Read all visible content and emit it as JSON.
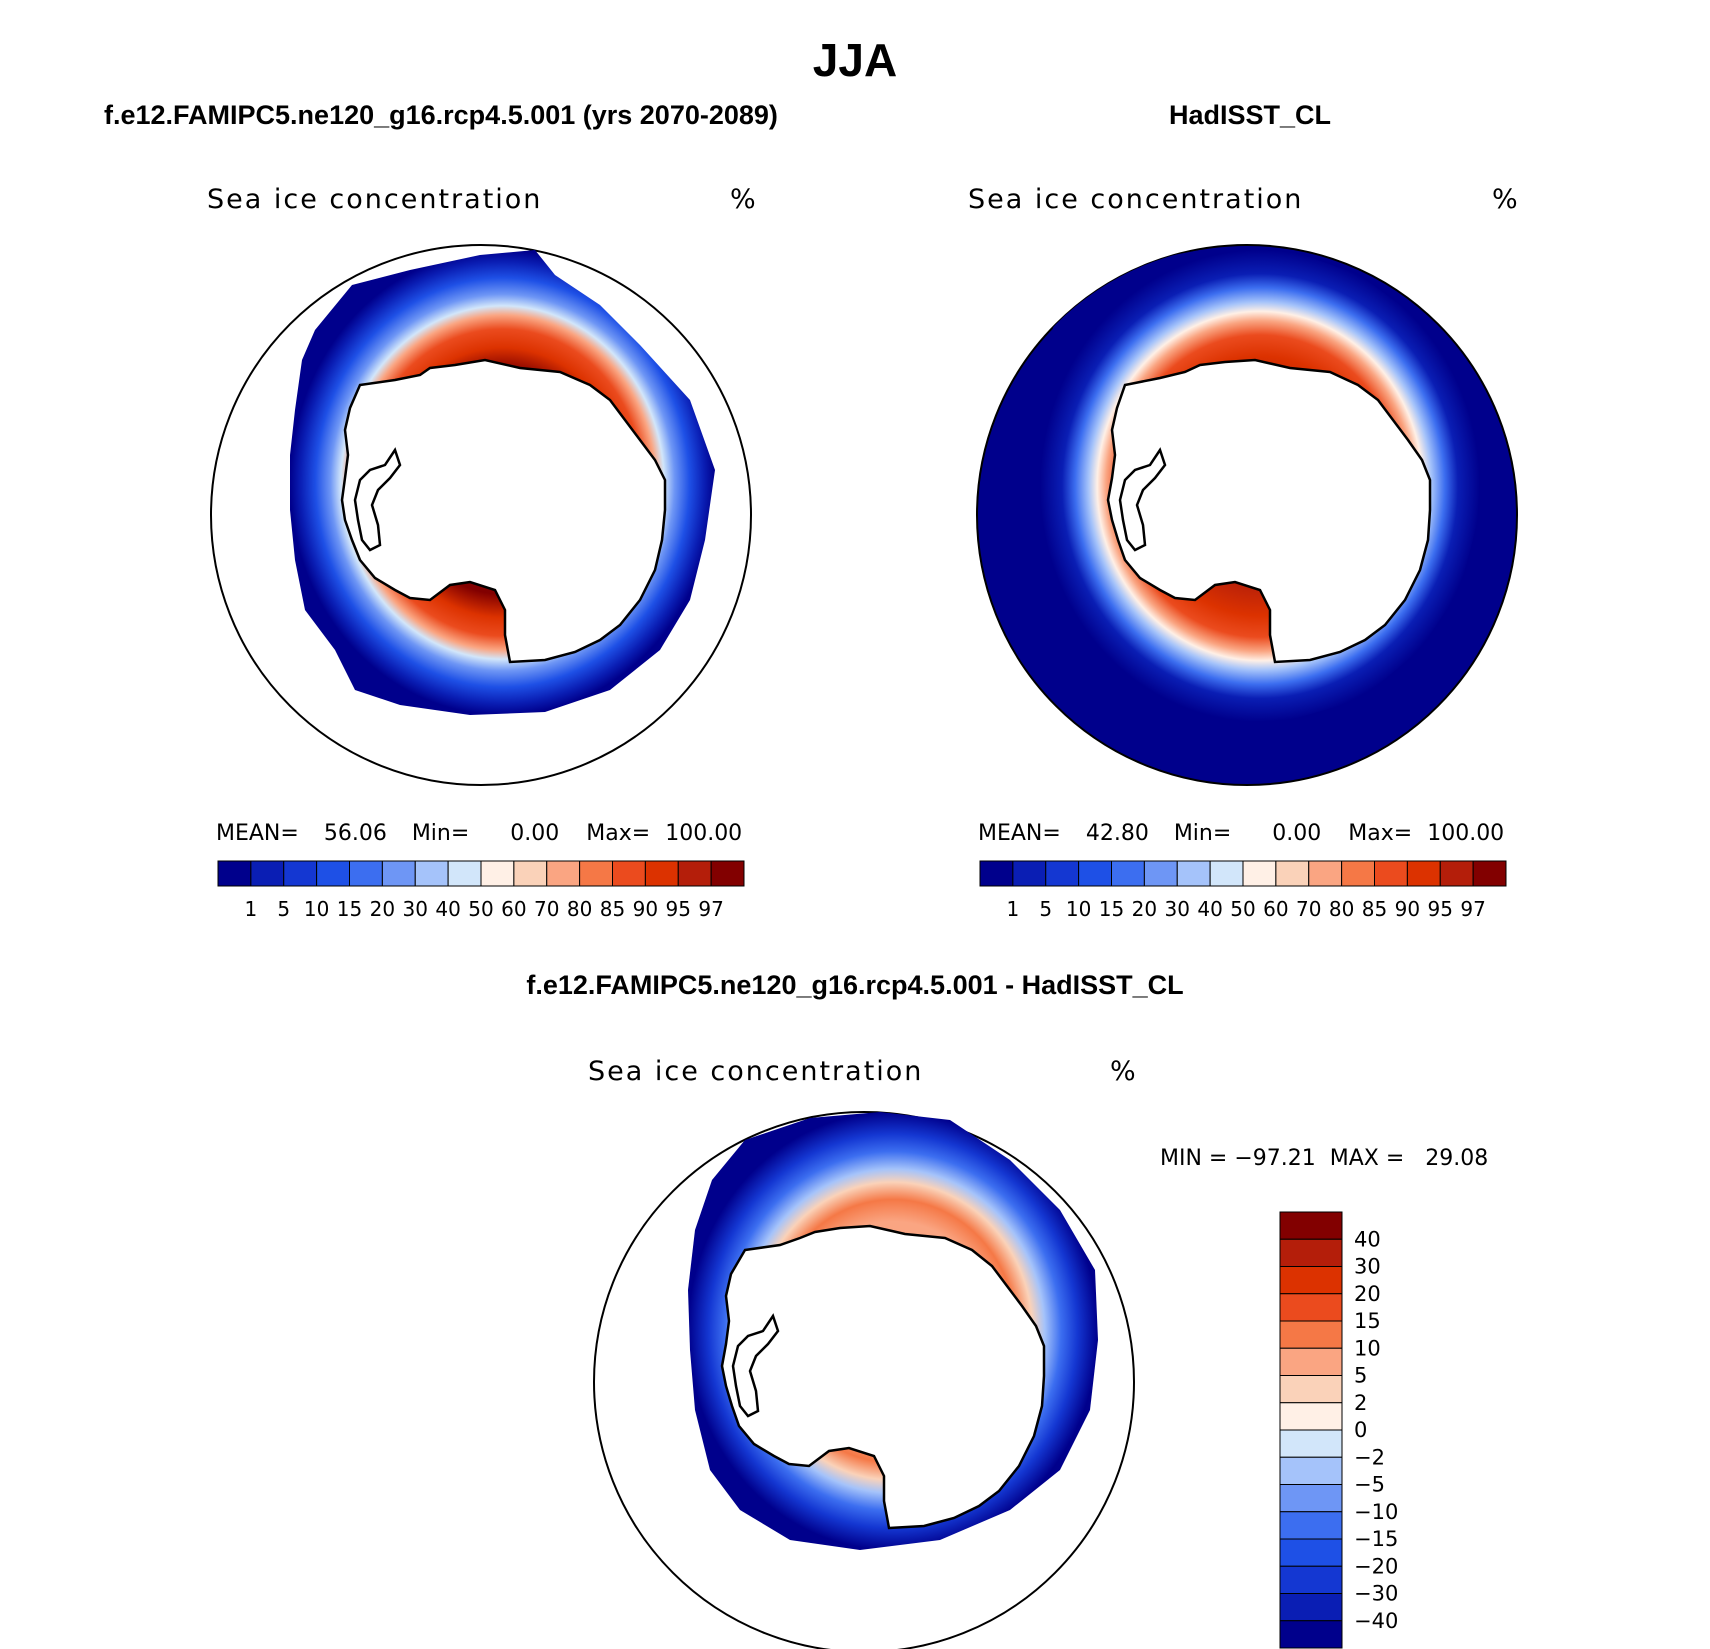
{
  "main_title": "JJA",
  "panels": [
    {
      "title": "f.e12.FAMIPC5.ne120_g16.rcp4.5.001 (yrs 2070-2089)",
      "variable": "Sea ice concentration",
      "units": "%",
      "stats": {
        "mean_label": "MEAN=",
        "mean": "56.06",
        "min_label": "Min=",
        "min": "0.00",
        "max_label": "Max=",
        "max": "100.00"
      }
    },
    {
      "title": "HadISST_CL",
      "variable": "Sea ice concentration",
      "units": "%",
      "stats": {
        "mean_label": "MEAN=",
        "mean": "42.80",
        "min_label": "Min=",
        "min": "0.00",
        "max_label": "Max=",
        "max": "100.00"
      }
    }
  ],
  "diff_panel": {
    "title": "f.e12.FAMIPC5.ne120_g16.rcp4.5.001 - HadISST_CL",
    "variable": "Sea ice concentration",
    "units": "%",
    "minmax": "MIN = −97.21  MAX =   29.08"
  },
  "colorbar_concentration": {
    "labels": [
      "1",
      "5",
      "10",
      "15",
      "20",
      "30",
      "40",
      "50",
      "60",
      "70",
      "80",
      "85",
      "90",
      "95",
      "97"
    ],
    "colors": [
      "#00008c",
      "#0a1eb4",
      "#1437d2",
      "#1e50e6",
      "#3c6ef0",
      "#6e96f5",
      "#a5c3fa",
      "#d2e6fa",
      "#fff0e6",
      "#fad2b9",
      "#faa582",
      "#f57846",
      "#eb4b1e",
      "#dc3200",
      "#b41e0a",
      "#820000"
    ]
  },
  "colorbar_difference": {
    "labels": [
      "40",
      "30",
      "20",
      "15",
      "10",
      "5",
      "2",
      "0",
      "−2",
      "−5",
      "−10",
      "−15",
      "−20",
      "−30",
      "−40"
    ],
    "colors": [
      "#820000",
      "#b41e0a",
      "#dc3200",
      "#eb4b1e",
      "#f57846",
      "#faa582",
      "#fad2b9",
      "#fff0e6",
      "#d2e6fa",
      "#a5c3fa",
      "#6e96f5",
      "#3c6ef0",
      "#1e50e6",
      "#1437d2",
      "#0a1eb4",
      "#00008c"
    ]
  }
}
